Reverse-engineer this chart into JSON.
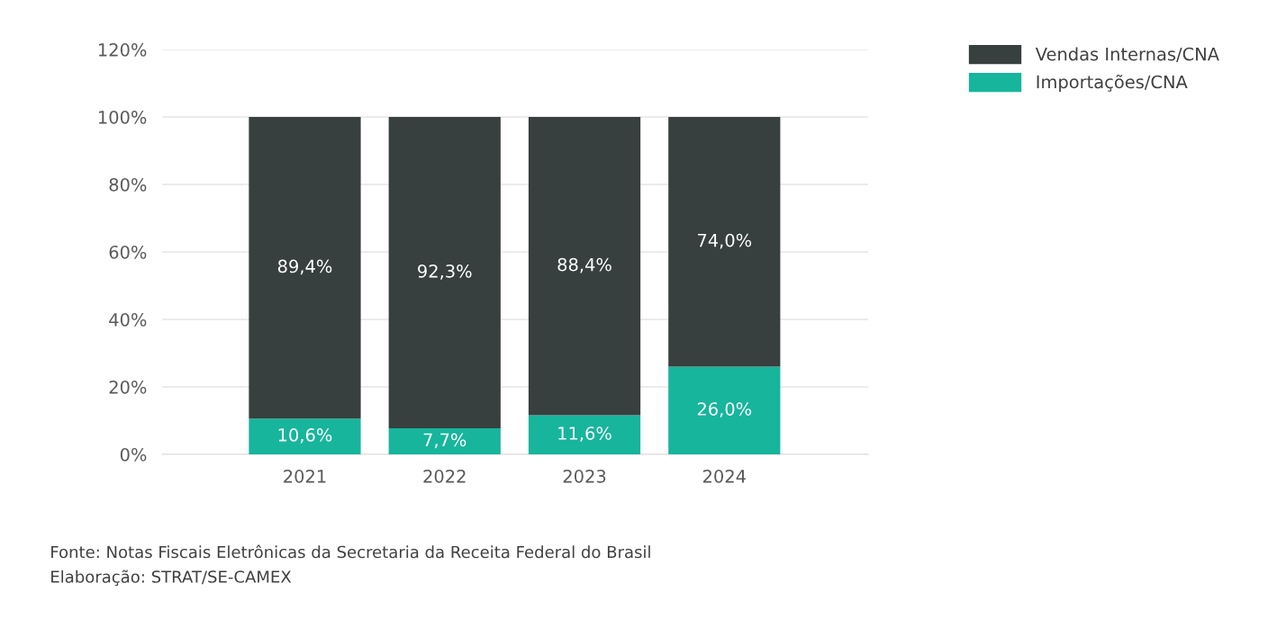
{
  "chart_data": {
    "type": "bar",
    "stacked": true,
    "categories": [
      "2021",
      "2022",
      "2023",
      "2024"
    ],
    "series": [
      {
        "name": "Importações/CNA",
        "color": "#17b59c",
        "values": [
          10.6,
          7.7,
          11.6,
          26.0
        ],
        "value_labels": [
          "10,6%",
          "7,7%",
          "11,6%",
          "26,0%"
        ]
      },
      {
        "name": "Vendas Internas/CNA",
        "color": "#373f3f",
        "values": [
          89.4,
          92.3,
          88.4,
          74.0
        ],
        "value_labels": [
          "89,4%",
          "92,3%",
          "88,4%",
          "74,0%"
        ]
      }
    ],
    "ylim": [
      0,
      120
    ],
    "yticks": [
      {
        "value": 0,
        "label": "0%"
      },
      {
        "value": 20,
        "label": "20%"
      },
      {
        "value": 40,
        "label": "40%"
      },
      {
        "value": 60,
        "label": "60%"
      },
      {
        "value": 80,
        "label": "80%"
      },
      {
        "value": 100,
        "label": "100%"
      },
      {
        "value": 120,
        "label": "120%"
      }
    ],
    "grid": "y",
    "legend": "top right",
    "annotations": [
      "Fonte: Notas Fiscais Eletrônicas da Secretaria da Receita Federal do Brasil",
      "Elaboração: STRAT/SE-CAMEX"
    ]
  }
}
